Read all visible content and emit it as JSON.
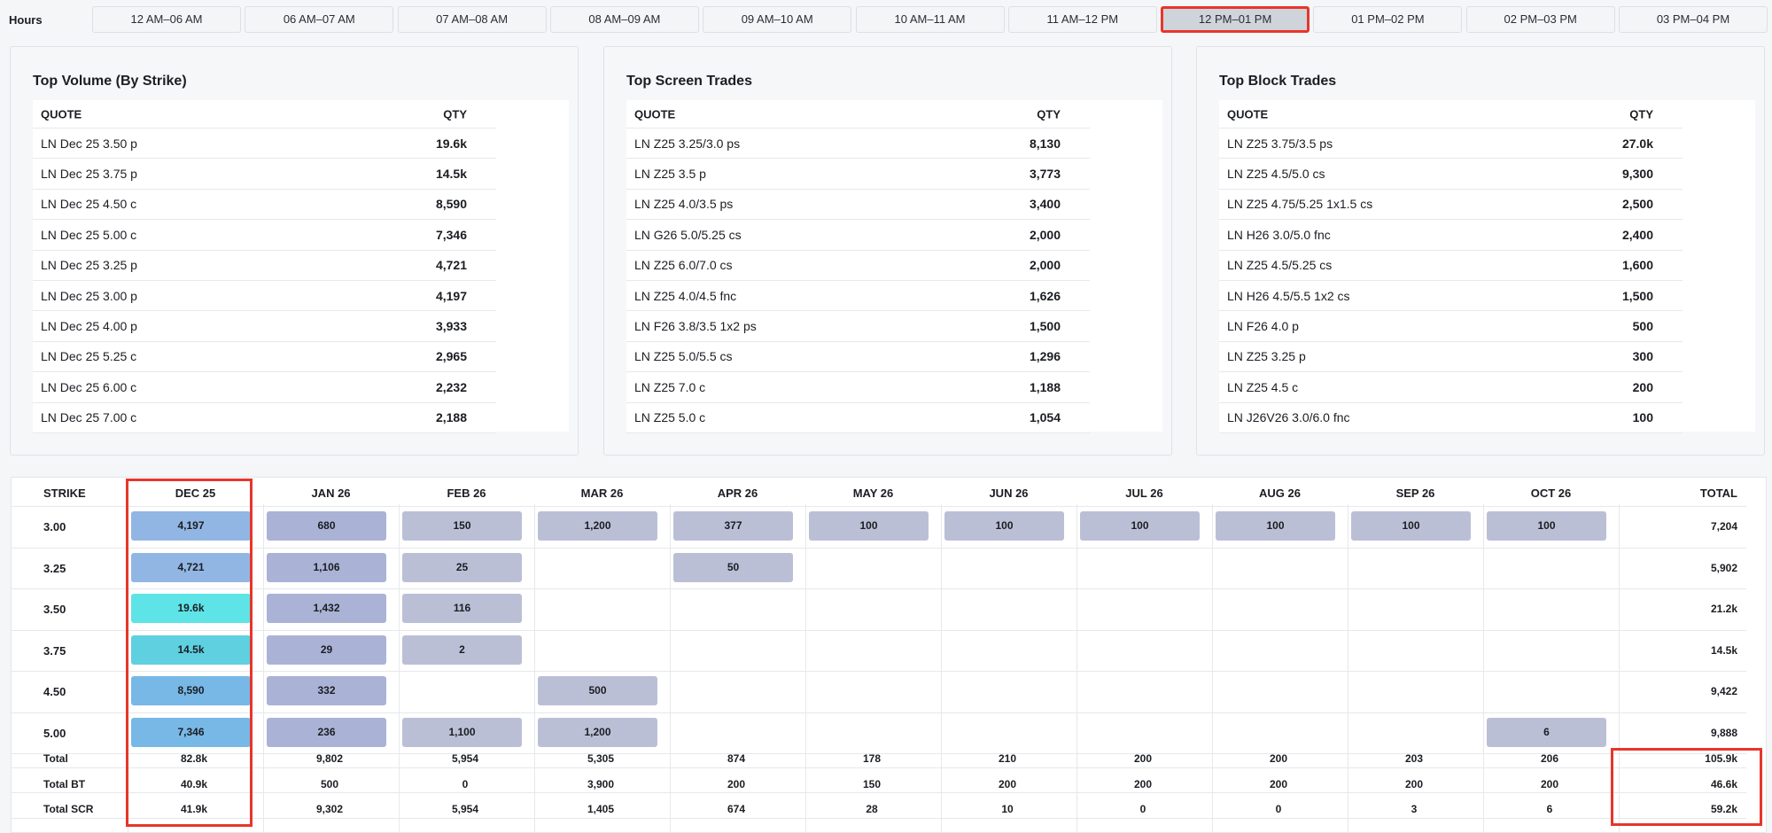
{
  "hours": {
    "label": "Hours",
    "slots": [
      "12 AM–06 AM",
      "06 AM–07 AM",
      "07 AM–08 AM",
      "08 AM–09 AM",
      "09 AM–10 AM",
      "10 AM–11 AM",
      "11 AM–12 PM",
      "12 PM–01 PM",
      "01 PM–02 PM",
      "02 PM–03 PM",
      "03 PM–04 PM"
    ],
    "active_index": 7
  },
  "panels": [
    {
      "title": "Top Volume (By Strike)",
      "col_quote": "QUOTE",
      "col_qty": "QTY",
      "rows": [
        [
          "LN Dec 25 3.50 p",
          "19.6k"
        ],
        [
          "LN Dec 25 3.75 p",
          "14.5k"
        ],
        [
          "LN Dec 25 4.50 c",
          "8,590"
        ],
        [
          "LN Dec 25 5.00 c",
          "7,346"
        ],
        [
          "LN Dec 25 3.25 p",
          "4,721"
        ],
        [
          "LN Dec 25 3.00 p",
          "4,197"
        ],
        [
          "LN Dec 25 4.00 p",
          "3,933"
        ],
        [
          "LN Dec 25 5.25 c",
          "2,965"
        ],
        [
          "LN Dec 25 6.00 c",
          "2,232"
        ],
        [
          "LN Dec 25 7.00 c",
          "2,188"
        ]
      ]
    },
    {
      "title": "Top Screen Trades",
      "col_quote": "QUOTE",
      "col_qty": "QTY",
      "rows": [
        [
          "LN Z25 3.25/3.0 ps",
          "8,130"
        ],
        [
          "LN Z25 3.5 p",
          "3,773"
        ],
        [
          "LN Z25 4.0/3.5 ps",
          "3,400"
        ],
        [
          "LN G26 5.0/5.25 cs",
          "2,000"
        ],
        [
          "LN Z25 6.0/7.0 cs",
          "2,000"
        ],
        [
          "LN Z25 4.0/4.5 fnc",
          "1,626"
        ],
        [
          "LN F26 3.8/3.5 1x2 ps",
          "1,500"
        ],
        [
          "LN Z25 5.0/5.5 cs",
          "1,296"
        ],
        [
          "LN Z25 7.0 c",
          "1,188"
        ],
        [
          "LN Z25 5.0 c",
          "1,054"
        ]
      ]
    },
    {
      "title": "Top Block Trades",
      "col_quote": "QUOTE",
      "col_qty": "QTY",
      "rows": [
        [
          "LN Z25 3.75/3.5 ps",
          "27.0k"
        ],
        [
          "LN Z25 4.5/5.0 cs",
          "9,300"
        ],
        [
          "LN Z25 4.75/5.25 1x1.5 cs",
          "2,500"
        ],
        [
          "LN H26 3.0/5.0 fnc",
          "2,400"
        ],
        [
          "LN Z25 4.5/5.25 cs",
          "1,600"
        ],
        [
          "LN H26 4.5/5.5 1x2 cs",
          "1,500"
        ],
        [
          "LN F26 4.0 p",
          "500"
        ],
        [
          "LN Z25 3.25 p",
          "300"
        ],
        [
          "LN Z25 4.5 c",
          "200"
        ],
        [
          "LN J26V26 3.0/6.0 fnc",
          "100"
        ]
      ]
    }
  ],
  "grid": {
    "strike_header": "STRIKE",
    "total_header": "TOTAL",
    "months": [
      "DEC 25",
      "JAN 26",
      "FEB 26",
      "MAR 26",
      "APR 26",
      "MAY 26",
      "JUN 26",
      "JUL 26",
      "AUG 26",
      "SEP 26",
      "OCT 26"
    ],
    "rows": [
      {
        "strike": "3.00",
        "cells": [
          "4,197",
          "680",
          "150",
          "1,200",
          "377",
          "100",
          "100",
          "100",
          "100",
          "100",
          "100"
        ],
        "total": "7,204"
      },
      {
        "strike": "3.25",
        "cells": [
          "4,721",
          "1,106",
          "25",
          "",
          "50",
          "",
          "",
          "",
          "",
          "",
          ""
        ],
        "total": "5,902"
      },
      {
        "strike": "3.50",
        "cells": [
          "19.6k",
          "1,432",
          "116",
          "",
          "",
          "",
          "",
          "",
          "",
          "",
          ""
        ],
        "total": "21.2k"
      },
      {
        "strike": "3.75",
        "cells": [
          "14.5k",
          "29",
          "2",
          "",
          "",
          "",
          "",
          "",
          "",
          "",
          ""
        ],
        "total": "14.5k"
      },
      {
        "strike": "4.50",
        "cells": [
          "8,590",
          "332",
          "",
          "500",
          "",
          "",
          "",
          "",
          "",
          "",
          ""
        ],
        "total": "9,422"
      },
      {
        "strike": "5.00",
        "cells": [
          "7,346",
          "236",
          "1,100",
          "1,200",
          "",
          "",
          "",
          "",
          "",
          "",
          "6"
        ],
        "total": "9,888"
      }
    ],
    "summary": [
      {
        "label": "Total",
        "cells": [
          "82.8k",
          "9,802",
          "5,954",
          "5,305",
          "874",
          "178",
          "210",
          "200",
          "200",
          "203",
          "206"
        ],
        "total": "105.9k"
      },
      {
        "label": "Total BT",
        "cells": [
          "40.9k",
          "500",
          "0",
          "3,900",
          "200",
          "150",
          "200",
          "200",
          "200",
          "200",
          "200"
        ],
        "total": "46.6k"
      },
      {
        "label": "Total SCR",
        "cells": [
          "41.9k",
          "9,302",
          "5,954",
          "1,405",
          "674",
          "28",
          "10",
          "0",
          "0",
          "3",
          "6"
        ],
        "total": "59.2k"
      }
    ],
    "colors": {
      "dec_low": "#92b6e4",
      "dec_mid": "#78b8e6",
      "dec_hi": "#5fd0e0",
      "dec_top": "#5ee4e6",
      "other": "#bbbfd6",
      "jan": "#aab3d6"
    }
  }
}
